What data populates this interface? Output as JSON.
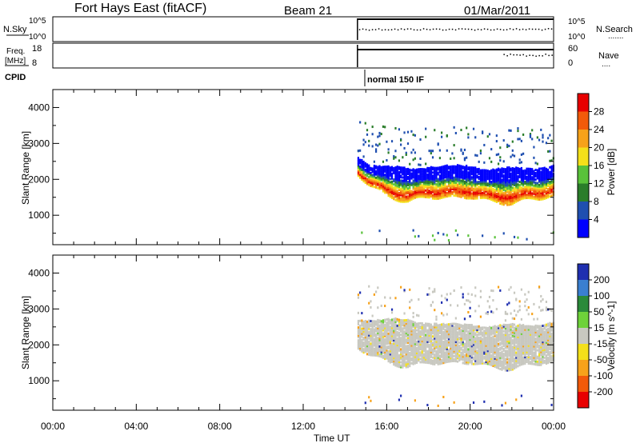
{
  "header": {
    "title": "Fort Hays East (fitACF)",
    "beam": "Beam 21",
    "date": "01/Mar/2011"
  },
  "strips": {
    "nsky": {
      "left_label": "N.Sky",
      "left_ticks": [
        "10^5",
        "10^0"
      ],
      "right_ticks": [
        "10^5",
        "10^0"
      ],
      "right_label": "N.Search",
      "right_style": "......."
    },
    "freq": {
      "left_label_line1": "Freq.",
      "left_label_line2": "[MHz]",
      "left_ticks": [
        "18",
        "8"
      ],
      "right_ticks": [
        "60",
        "0"
      ],
      "right_label": "Nave",
      "right_style": "...."
    },
    "cpid": {
      "label": "CPID",
      "mode": "normal 150 IF"
    }
  },
  "x_axis": {
    "label": "Time UT",
    "ticks": [
      "00:00",
      "04:00",
      "08:00",
      "12:00",
      "16:00",
      "20:00",
      "00:00"
    ]
  },
  "chart_data": [
    {
      "type": "heatmap",
      "title": "",
      "xlabel": "Time UT",
      "ylabel": "Slant Range [km]",
      "x_range_hours": [
        0,
        24
      ],
      "ylim": [
        180,
        4500
      ],
      "y_ticks": [
        1000,
        2000,
        3000,
        4000
      ],
      "data_start_hour": 14.6,
      "colorbar": {
        "label": "Power [dB]",
        "ticks": [
          "4",
          "8",
          "12",
          "16",
          "20",
          "24",
          "28"
        ],
        "range": [
          0,
          32
        ],
        "colors": [
          "#0000ff",
          "#1f4fb0",
          "#2a7d2a",
          "#59c23a",
          "#f4e01a",
          "#f7a21a",
          "#f25a0a",
          "#e80000"
        ]
      },
      "echo_band": {
        "lower_edge_km": [
          [
            14.6,
            2100
          ],
          [
            15.2,
            1800
          ],
          [
            16.0,
            1500
          ],
          [
            17.0,
            1350
          ],
          [
            18.0,
            1500
          ],
          [
            19.0,
            1450
          ],
          [
            20.0,
            1500
          ],
          [
            21.0,
            1350
          ],
          [
            22.0,
            1300
          ],
          [
            23.0,
            1450
          ],
          [
            24.0,
            1500
          ]
        ],
        "upper_edge_km": [
          [
            14.6,
            2600
          ],
          [
            15.2,
            2400
          ],
          [
            16.0,
            2300
          ],
          [
            17.0,
            2250
          ],
          [
            18.0,
            2350
          ],
          [
            19.0,
            2300
          ],
          [
            20.0,
            2350
          ],
          [
            21.0,
            2250
          ],
          [
            22.0,
            2250
          ],
          [
            23.0,
            2300
          ],
          [
            24.0,
            2350
          ]
        ],
        "peak_power_db": 28
      },
      "scatter_echoes": {
        "range_km": [
          2500,
          3600
        ],
        "typical_power_db": 8
      }
    },
    {
      "type": "heatmap",
      "title": "",
      "xlabel": "Time UT",
      "ylabel": "Slant Range [km]",
      "x_range_hours": [
        0,
        24
      ],
      "ylim": [
        180,
        4500
      ],
      "y_ticks": [
        1000,
        2000,
        3000,
        4000
      ],
      "data_start_hour": 14.6,
      "colorbar": {
        "label": "Velocity [m s^-1]",
        "ticks": [
          "200",
          "100",
          "50",
          "15",
          "-15",
          "-50",
          "-100",
          "-200"
        ],
        "colors": [
          "#1f2fb0",
          "#3a7fd0",
          "#2a8a3a",
          "#6ed23a",
          "#c8c8c0",
          "#f4e01a",
          "#f7a21a",
          "#f25a0a",
          "#e80000"
        ]
      },
      "echo_band": {
        "lower_edge_km": [
          [
            14.6,
            1900
          ],
          [
            15.2,
            1700
          ],
          [
            16.0,
            1500
          ],
          [
            17.0,
            1350
          ],
          [
            18.0,
            1500
          ],
          [
            19.0,
            1450
          ],
          [
            20.0,
            1500
          ],
          [
            21.0,
            1350
          ],
          [
            22.0,
            1300
          ],
          [
            23.0,
            1450
          ],
          [
            24.0,
            1500
          ]
        ],
        "upper_edge_km": [
          [
            14.6,
            2700
          ],
          [
            15.2,
            2700
          ],
          [
            16.0,
            2650
          ],
          [
            17.0,
            2650
          ],
          [
            18.0,
            2600
          ],
          [
            19.0,
            2500
          ],
          [
            20.0,
            2550
          ],
          [
            21.0,
            2500
          ],
          [
            22.0,
            2500
          ],
          [
            23.0,
            2550
          ],
          [
            24.0,
            2600
          ]
        ],
        "dominant_velocity_ms": 0
      }
    }
  ]
}
